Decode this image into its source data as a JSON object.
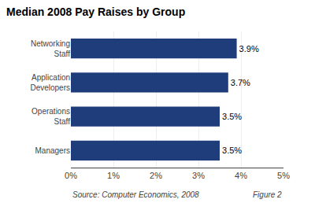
{
  "chart_data": {
    "type": "bar",
    "title": "Median 2008 Pay Raises by Group",
    "orientation": "horizontal",
    "categories": [
      "Networking\nStaff",
      "Application\nDevelopers",
      "Operations\nStaff",
      "Managers"
    ],
    "values": [
      3.9,
      3.7,
      3.5,
      3.5
    ],
    "value_labels": [
      "3.9%",
      "3.7%",
      "3.5%",
      "3.5%"
    ],
    "data_labels": true,
    "color": "#1F3D7A",
    "xlim": [
      0,
      5
    ],
    "xticks": [
      {
        "value": 0,
        "label": "0%"
      },
      {
        "value": 1,
        "label": "1%"
      },
      {
        "value": 2,
        "label": "2%"
      },
      {
        "value": 3,
        "label": "3%"
      },
      {
        "value": 4,
        "label": "4%"
      },
      {
        "value": 5,
        "label": "5%"
      }
    ],
    "grid": true,
    "annotations": [
      "Source: Computer Economics, 2008",
      "Figure 2"
    ]
  }
}
